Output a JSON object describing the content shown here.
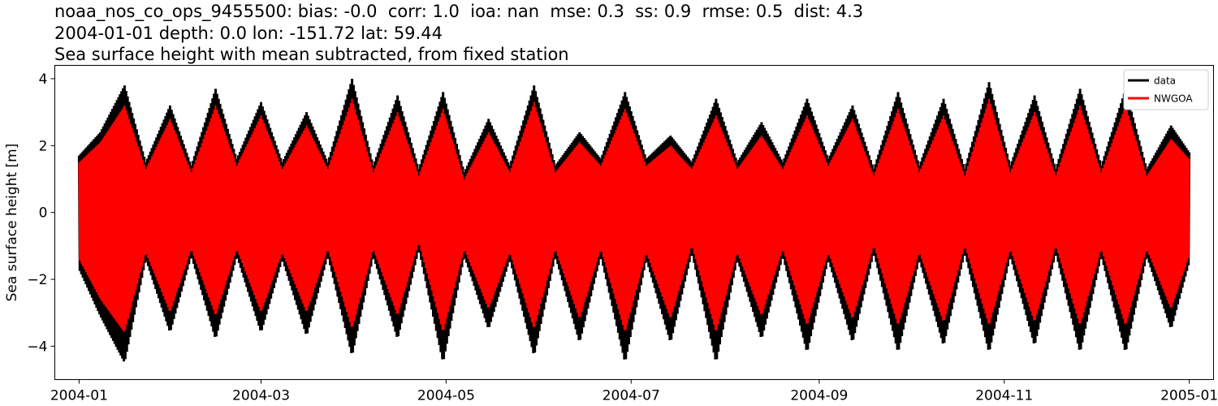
{
  "chart_data": {
    "type": "line",
    "title_lines": [
      "noaa_nos_co_ops_9455500: bias: -0.0  corr: 1.0  ioa: nan  mse: 0.3  ss: 0.9  rmse: 0.5  dist: 4.3",
      "2004-01-01 depth: 0.0 lon: -151.72 lat: 59.44",
      "Sea surface height with mean subtracted, from fixed station"
    ],
    "xlabel": "",
    "ylabel": "Sea surface height [m]",
    "x_range": [
      "2003-12-24",
      "2005-01-09"
    ],
    "ylim": [
      -5.0,
      4.4
    ],
    "x_ticks": [
      "2004-01",
      "2004-03",
      "2004-05",
      "2004-07",
      "2004-09",
      "2004-11",
      "2005-01"
    ],
    "y_ticks": [
      -4,
      -2,
      0,
      2,
      4
    ],
    "y_tick_labels": [
      "−4",
      "−2",
      "0",
      "2",
      "4"
    ],
    "grid": false,
    "legend_position": "top-right",
    "series": [
      {
        "name": "data",
        "color": "#000000",
        "x": [
          "2004-01-01",
          "2004-01-08",
          "2004-01-16",
          "2004-01-23",
          "2004-01-31",
          "2004-02-07",
          "2004-02-15",
          "2004-02-22",
          "2004-03-01",
          "2004-03-08",
          "2004-03-16",
          "2004-03-23",
          "2004-03-31",
          "2004-04-07",
          "2004-04-15",
          "2004-04-22",
          "2004-04-30",
          "2004-05-07",
          "2004-05-15",
          "2004-05-22",
          "2004-05-30",
          "2004-06-06",
          "2004-06-14",
          "2004-06-21",
          "2004-06-29",
          "2004-07-06",
          "2004-07-14",
          "2004-07-21",
          "2004-07-29",
          "2004-08-05",
          "2004-08-13",
          "2004-08-20",
          "2004-08-28",
          "2004-09-04",
          "2004-09-12",
          "2004-09-19",
          "2004-09-27",
          "2004-10-04",
          "2004-10-12",
          "2004-10-19",
          "2004-10-27",
          "2004-11-03",
          "2004-11-11",
          "2004-11-18",
          "2004-11-26",
          "2004-12-03",
          "2004-12-11",
          "2004-12-18",
          "2004-12-26",
          "2005-01-01"
        ],
        "max": [
          1.7,
          2.4,
          3.8,
          1.5,
          3.2,
          1.4,
          3.7,
          1.6,
          3.3,
          1.5,
          3.0,
          1.5,
          4.0,
          1.4,
          3.5,
          1.3,
          3.6,
          1.2,
          2.8,
          1.4,
          3.8,
          1.4,
          2.4,
          1.6,
          3.6,
          1.6,
          2.3,
          1.5,
          3.4,
          1.5,
          2.7,
          1.5,
          3.4,
          1.6,
          3.2,
          1.3,
          3.6,
          1.4,
          3.4,
          1.3,
          3.9,
          1.4,
          3.5,
          1.3,
          3.7,
          1.4,
          3.7,
          1.3,
          2.6,
          1.8
        ],
        "min": [
          -1.7,
          -3.1,
          -4.5,
          -1.4,
          -3.6,
          -1.3,
          -3.8,
          -1.3,
          -3.6,
          -1.4,
          -3.7,
          -1.3,
          -4.3,
          -1.3,
          -3.8,
          -1.1,
          -4.5,
          -1.3,
          -3.5,
          -1.4,
          -4.3,
          -1.3,
          -3.9,
          -1.3,
          -4.5,
          -1.4,
          -3.9,
          -1.2,
          -4.5,
          -1.4,
          -3.8,
          -1.3,
          -4.2,
          -1.4,
          -3.9,
          -1.2,
          -4.2,
          -1.4,
          -4.0,
          -1.2,
          -4.2,
          -1.3,
          -4.0,
          -1.2,
          -4.2,
          -1.3,
          -4.2,
          -1.3,
          -3.5,
          -1.5
        ]
      },
      {
        "name": "NWGOA",
        "color": "#ff0000",
        "x": [
          "2004-01-01",
          "2004-01-08",
          "2004-01-16",
          "2004-01-23",
          "2004-01-31",
          "2004-02-07",
          "2004-02-15",
          "2004-02-22",
          "2004-03-01",
          "2004-03-08",
          "2004-03-16",
          "2004-03-23",
          "2004-03-31",
          "2004-04-07",
          "2004-04-15",
          "2004-04-22",
          "2004-04-30",
          "2004-05-07",
          "2004-05-15",
          "2004-05-22",
          "2004-05-30",
          "2004-06-06",
          "2004-06-14",
          "2004-06-21",
          "2004-06-29",
          "2004-07-06",
          "2004-07-14",
          "2004-07-21",
          "2004-07-29",
          "2004-08-05",
          "2004-08-13",
          "2004-08-20",
          "2004-08-28",
          "2004-09-04",
          "2004-09-12",
          "2004-09-19",
          "2004-09-27",
          "2004-10-04",
          "2004-10-12",
          "2004-10-19",
          "2004-10-27",
          "2004-11-03",
          "2004-11-11",
          "2004-11-18",
          "2004-11-26",
          "2004-12-03",
          "2004-12-11",
          "2004-12-18",
          "2004-12-26",
          "2005-01-01"
        ],
        "max": [
          1.5,
          2.1,
          3.2,
          1.3,
          2.8,
          1.2,
          3.2,
          1.4,
          2.9,
          1.3,
          2.6,
          1.3,
          3.4,
          1.2,
          3.0,
          1.1,
          3.1,
          1.0,
          2.4,
          1.2,
          3.3,
          1.2,
          2.1,
          1.4,
          3.1,
          1.4,
          2.0,
          1.3,
          2.9,
          1.3,
          2.3,
          1.3,
          2.9,
          1.4,
          2.8,
          1.1,
          3.1,
          1.2,
          2.9,
          1.1,
          3.4,
          1.2,
          3.0,
          1.1,
          3.2,
          1.2,
          3.2,
          1.1,
          2.2,
          1.6
        ],
        "min": [
          -1.4,
          -2.6,
          -3.6,
          -1.2,
          -3.0,
          -1.1,
          -3.1,
          -1.1,
          -3.0,
          -1.2,
          -3.0,
          -1.1,
          -3.5,
          -1.1,
          -3.1,
          -0.9,
          -3.6,
          -1.1,
          -2.9,
          -1.2,
          -3.5,
          -1.1,
          -3.2,
          -1.1,
          -3.6,
          -1.2,
          -3.2,
          -1.0,
          -3.6,
          -1.2,
          -3.1,
          -1.1,
          -3.4,
          -1.2,
          -3.2,
          -1.0,
          -3.4,
          -1.2,
          -3.3,
          -1.0,
          -3.4,
          -1.1,
          -3.3,
          -1.0,
          -3.4,
          -1.1,
          -3.4,
          -1.1,
          -2.9,
          -1.3
        ]
      }
    ]
  }
}
